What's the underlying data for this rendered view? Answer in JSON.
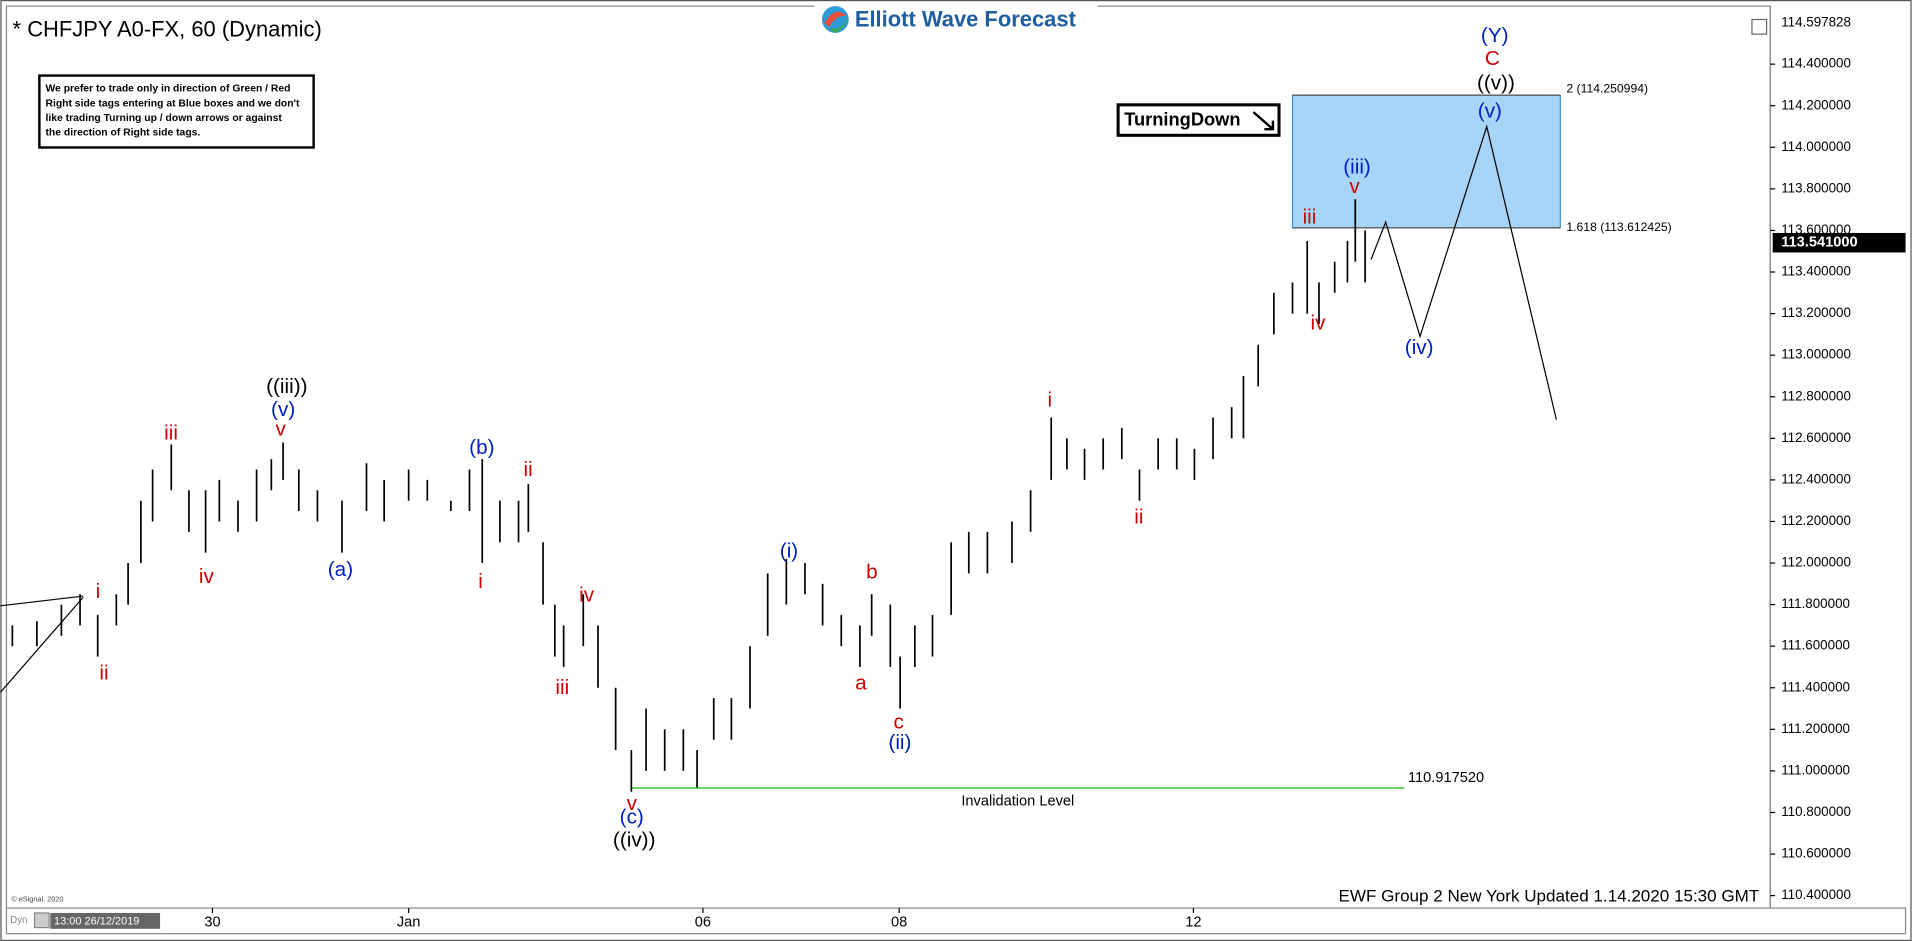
{
  "chart_data": {
    "type": "ohlc",
    "title": "* CHFJPY A0-FX, 60 (Dynamic)",
    "logo": "Elliott Wave Forecast",
    "note": [
      "We prefer to trade only in direction of Green / Red",
      "Right side tags entering at Blue boxes and we don't",
      "like trading Turning up / down arrows or against",
      "the direction of Right side tags."
    ],
    "signal": "TurningDown",
    "footer": "EWF Group 2 New York Updated 1.14.2020 15:30 GMT",
    "copyright": "© eSignal, 2020",
    "cursor_label": "Dyn",
    "cursor_time": "13:00 26/12/2019",
    "color": "#000000",
    "x": [
      -2.04,
      -1.79,
      -1.54,
      -1.35,
      -1.17,
      -0.98,
      -0.86,
      -0.73,
      -0.61,
      -0.42,
      -0.24,
      -0.07,
      0.07,
      0.26,
      0.45,
      0.6,
      0.72,
      0.88,
      1.07,
      1.32,
      1.57,
      1.75,
      2.0,
      2.19,
      2.43,
      2.62,
      2.75,
      2.93,
      3.12,
      3.22,
      3.37,
      3.49,
      3.58,
      3.78,
      3.93,
      4.11,
      4.27,
      4.42,
      4.61,
      4.8,
      4.94,
      5.11,
      5.29,
      5.48,
      5.66,
      5.85,
      6.04,
      6.22,
      6.41,
      6.6,
      6.72,
      6.91,
      7.01,
      7.16,
      7.34,
      7.53,
      7.71,
      7.9,
      8.15,
      8.34,
      8.55,
      8.71,
      8.89,
      9.08,
      9.27,
      9.45,
      9.64,
      9.83,
      10.01,
      10.2,
      10.39,
      10.51,
      10.66,
      10.82,
      11.01,
      11.16,
      11.28,
      11.44,
      11.57,
      11.65,
      11.75
    ],
    "high": [
      111.7,
      111.72,
      111.8,
      111.85,
      111.75,
      111.85,
      112.0,
      112.3,
      112.45,
      112.57,
      112.35,
      112.35,
      112.4,
      112.3,
      112.45,
      112.5,
      112.58,
      112.45,
      112.35,
      112.3,
      112.48,
      112.4,
      112.45,
      112.4,
      112.3,
      112.45,
      112.5,
      112.3,
      112.3,
      112.38,
      112.1,
      111.8,
      111.7,
      111.85,
      111.7,
      111.4,
      111.1,
      111.3,
      111.2,
      111.2,
      111.1,
      111.35,
      111.35,
      111.6,
      111.95,
      112.02,
      112.0,
      111.9,
      111.75,
      111.7,
      111.85,
      111.8,
      111.55,
      111.7,
      111.75,
      112.1,
      112.15,
      112.15,
      112.2,
      112.35,
      112.7,
      112.6,
      112.55,
      112.6,
      112.65,
      112.45,
      112.6,
      112.6,
      112.55,
      112.7,
      112.75,
      112.9,
      113.05,
      113.3,
      113.35,
      113.55,
      113.35,
      113.45,
      113.55,
      113.75,
      113.6
    ],
    "low": [
      111.6,
      111.6,
      111.65,
      111.7,
      111.55,
      111.7,
      111.8,
      112.0,
      112.2,
      112.35,
      112.15,
      112.05,
      112.2,
      112.15,
      112.2,
      112.35,
      112.4,
      112.25,
      112.2,
      112.05,
      112.25,
      112.2,
      112.3,
      112.3,
      112.25,
      112.25,
      112.0,
      112.1,
      112.1,
      112.15,
      111.8,
      111.55,
      111.5,
      111.6,
      111.4,
      111.1,
      110.9,
      111.0,
      111.0,
      111.0,
      110.92,
      111.15,
      111.15,
      111.3,
      111.65,
      111.8,
      111.85,
      111.7,
      111.6,
      111.5,
      111.65,
      111.5,
      111.3,
      111.5,
      111.55,
      111.75,
      111.95,
      111.95,
      112.0,
      112.15,
      112.4,
      112.45,
      112.4,
      112.45,
      112.5,
      112.3,
      112.45,
      112.45,
      112.4,
      112.5,
      112.6,
      112.6,
      112.85,
      113.1,
      113.2,
      113.2,
      113.15,
      113.3,
      113.35,
      113.45,
      113.35
    ],
    "projection": {
      "x": [
        11.81,
        11.96,
        12.31,
        12.99,
        13.7
      ],
      "values": [
        113.46,
        113.64,
        113.09,
        114.1,
        112.69
      ],
      "color": "#000000"
    },
    "box": {
      "x": [
        11.01,
        13.74
      ],
      "values": [
        114.250994,
        113.612425
      ],
      "labels": [
        "2 (114.250994)",
        "1.618 (113.612425)"
      ],
      "color": "#a8d5f7"
    },
    "invalidation": {
      "value": 110.91752,
      "value_label": "110.917520",
      "label": "Invalidation Level",
      "x": [
        4.27,
        12.15
      ],
      "color": "#33cc33"
    },
    "last_price": {
      "value": 113.541,
      "label": "113.541000"
    },
    "high_price": {
      "value": 114.597828,
      "label": "114.597828"
    },
    "annotations": [
      {
        "text": "i",
        "color": "#d00000"
      },
      {
        "text": "ii",
        "color": "#d00000"
      },
      {
        "text": "iii",
        "color": "#d00000"
      },
      {
        "text": "iv",
        "color": "#d00000"
      },
      {
        "text": "((iii))",
        "color": "#000000"
      },
      {
        "text": "(v)",
        "color": "#0020c0"
      },
      {
        "text": "v",
        "color": "#d00000"
      },
      {
        "text": "(a)",
        "color": "#0020c0"
      },
      {
        "text": "(b)",
        "color": "#0020c0"
      },
      {
        "text": "i",
        "color": "#d00000"
      },
      {
        "text": "ii",
        "color": "#d00000"
      },
      {
        "text": "iii",
        "color": "#d00000"
      },
      {
        "text": "iv",
        "color": "#d00000"
      },
      {
        "text": "v",
        "color": "#d00000"
      },
      {
        "text": "(c)",
        "color": "#0020c0"
      },
      {
        "text": "((iv))",
        "color": "#000000"
      },
      {
        "text": "(i)",
        "color": "#0020c0"
      },
      {
        "text": "b",
        "color": "#d00000"
      },
      {
        "text": "a",
        "color": "#d00000"
      },
      {
        "text": "c",
        "color": "#d00000"
      },
      {
        "text": "(ii)",
        "color": "#0020c0"
      },
      {
        "text": "i",
        "color": "#d00000"
      },
      {
        "text": "ii",
        "color": "#d00000"
      },
      {
        "text": "iii",
        "color": "#d00000"
      },
      {
        "text": "iv",
        "color": "#d00000"
      },
      {
        "text": "(iii)",
        "color": "#0020c0"
      },
      {
        "text": "v",
        "color": "#d00000"
      },
      {
        "text": "(iv)",
        "color": "#0020c0"
      },
      {
        "text": "(v)",
        "color": "#0020c0"
      },
      {
        "text": "((v))",
        "color": "#000000"
      },
      {
        "text": "C",
        "color": "#d00000"
      },
      {
        "text": "(Y)",
        "color": "#0020c0"
      }
    ],
    "xlim": [
      -2.1,
      15.88
    ],
    "ylim": [
      110.34,
      114.65
    ],
    "xticks": [
      {
        "value": 0,
        "label": "30"
      },
      {
        "value": 2,
        "label": "Jan"
      },
      {
        "value": 5,
        "label": "06"
      },
      {
        "value": 7,
        "label": "08"
      },
      {
        "value": 10,
        "label": "12"
      }
    ],
    "yticks": [
      {
        "value": 110.4,
        "label": "110.400000"
      },
      {
        "value": 110.6,
        "label": "110.600000"
      },
      {
        "value": 110.8,
        "label": "110.800000"
      },
      {
        "value": 111.0,
        "label": "111.000000"
      },
      {
        "value": 111.2,
        "label": "111.200000"
      },
      {
        "value": 111.4,
        "label": "111.400000"
      },
      {
        "value": 111.6,
        "label": "111.600000"
      },
      {
        "value": 111.8,
        "label": "111.800000"
      },
      {
        "value": 112.0,
        "label": "112.000000"
      },
      {
        "value": 112.2,
        "label": "112.200000"
      },
      {
        "value": 112.4,
        "label": "112.400000"
      },
      {
        "value": 112.6,
        "label": "112.600000"
      },
      {
        "value": 112.8,
        "label": "112.800000"
      },
      {
        "value": 113.0,
        "label": "113.000000"
      },
      {
        "value": 113.2,
        "label": "113.200000"
      },
      {
        "value": 113.4,
        "label": "113.400000"
      },
      {
        "value": 113.6,
        "label": "113.600000"
      },
      {
        "value": 113.8,
        "label": "113.800000"
      },
      {
        "value": 114.0,
        "label": "114.000000"
      },
      {
        "value": 114.2,
        "label": "114.200000"
      },
      {
        "value": 114.4,
        "label": "114.400000"
      }
    ]
  }
}
